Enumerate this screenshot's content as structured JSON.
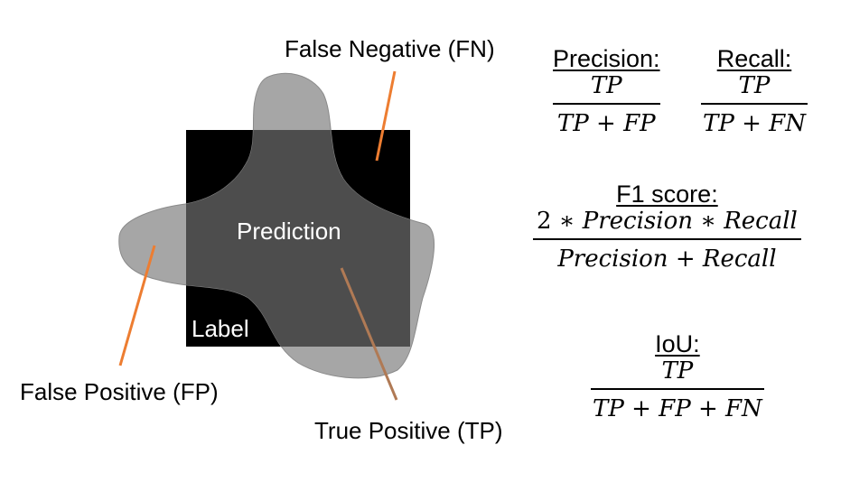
{
  "labels": {
    "false_negative": "False Negative (FN)",
    "false_positive": "False Positive (FP)",
    "true_positive": "True Positive (TP)",
    "prediction": "Prediction",
    "label": "Label"
  },
  "formulas": {
    "precision": {
      "title": "Precision:",
      "numerator": "TP",
      "denominator": "TP + FP"
    },
    "recall": {
      "title": "Recall:",
      "numerator": "TP",
      "denominator": "TP + FN"
    },
    "f1": {
      "title": "F1 score:",
      "numerator_lead": "2",
      "numerator_rest": " ∗ Precision  ∗ Recall",
      "denominator": "Precision + Recall"
    },
    "iou": {
      "title": "IoU:",
      "numerator": "TP",
      "denominator": "TP + FP + FN"
    }
  },
  "colors": {
    "label_square": "#000000",
    "prediction_blob": "#a6a6a6",
    "overlap": "#4d4d4d",
    "pointer_lines": "#ed7d31"
  }
}
